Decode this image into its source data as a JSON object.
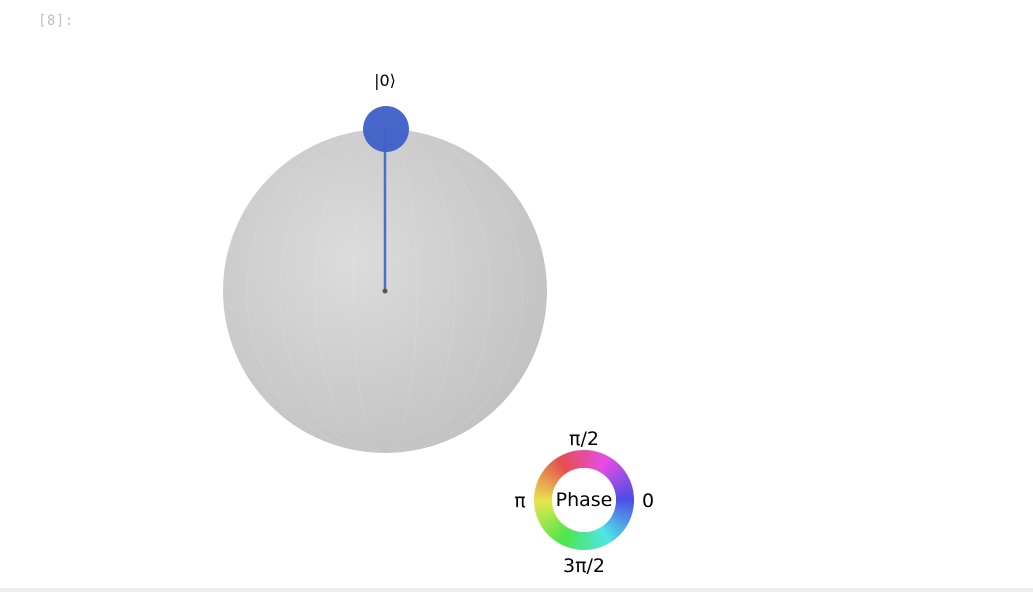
{
  "cell": {
    "prompt": "[8]:"
  },
  "qsphere": {
    "state_label": "|0⟩",
    "colors": {
      "sphere_light": "#dcdcdc",
      "sphere_dark": "#bebebe",
      "state_vector": "#4a6fc9",
      "state_point": "#3d5fc8"
    }
  },
  "phase_legend": {
    "center_label": "Phase",
    "top_label": "π/2",
    "left_label": "π",
    "right_label": "0",
    "bottom_label": "3π/2"
  }
}
